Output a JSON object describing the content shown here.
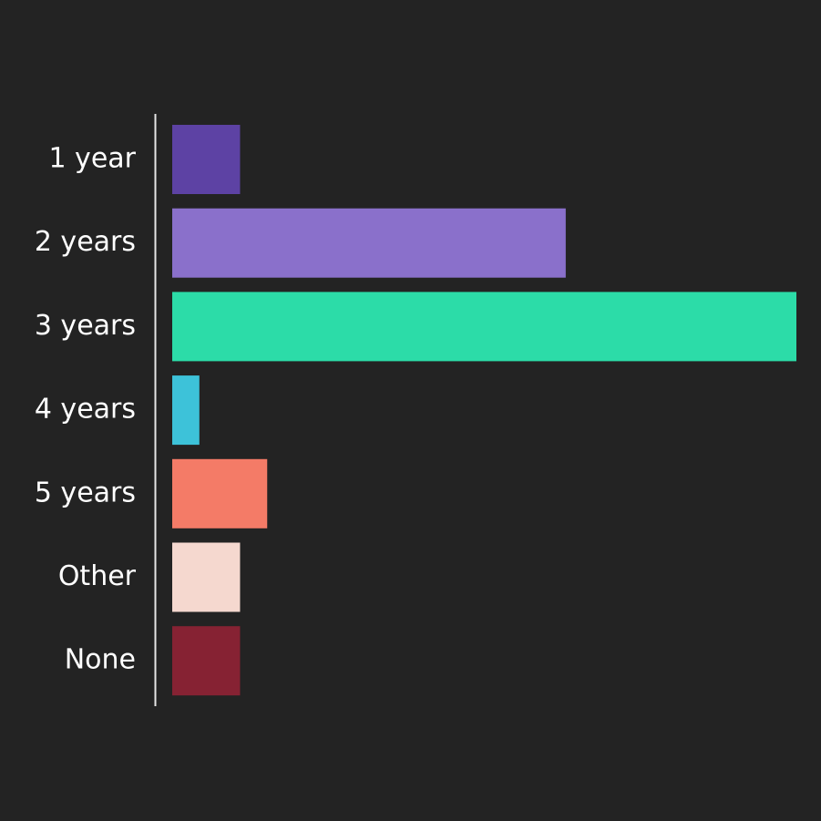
{
  "chart_data": {
    "type": "bar",
    "orientation": "horizontal",
    "categories": [
      "1 year",
      "2 years",
      "3 years",
      "4 years",
      "5 years",
      "Other",
      "None"
    ],
    "values": [
      5,
      29,
      46,
      2,
      7,
      5,
      5
    ],
    "colors": [
      "#5d42a4",
      "#8a70cb",
      "#2cdca8",
      "#3dc2d9",
      "#f47b67",
      "#f5d8cf",
      "#862233"
    ]
  }
}
